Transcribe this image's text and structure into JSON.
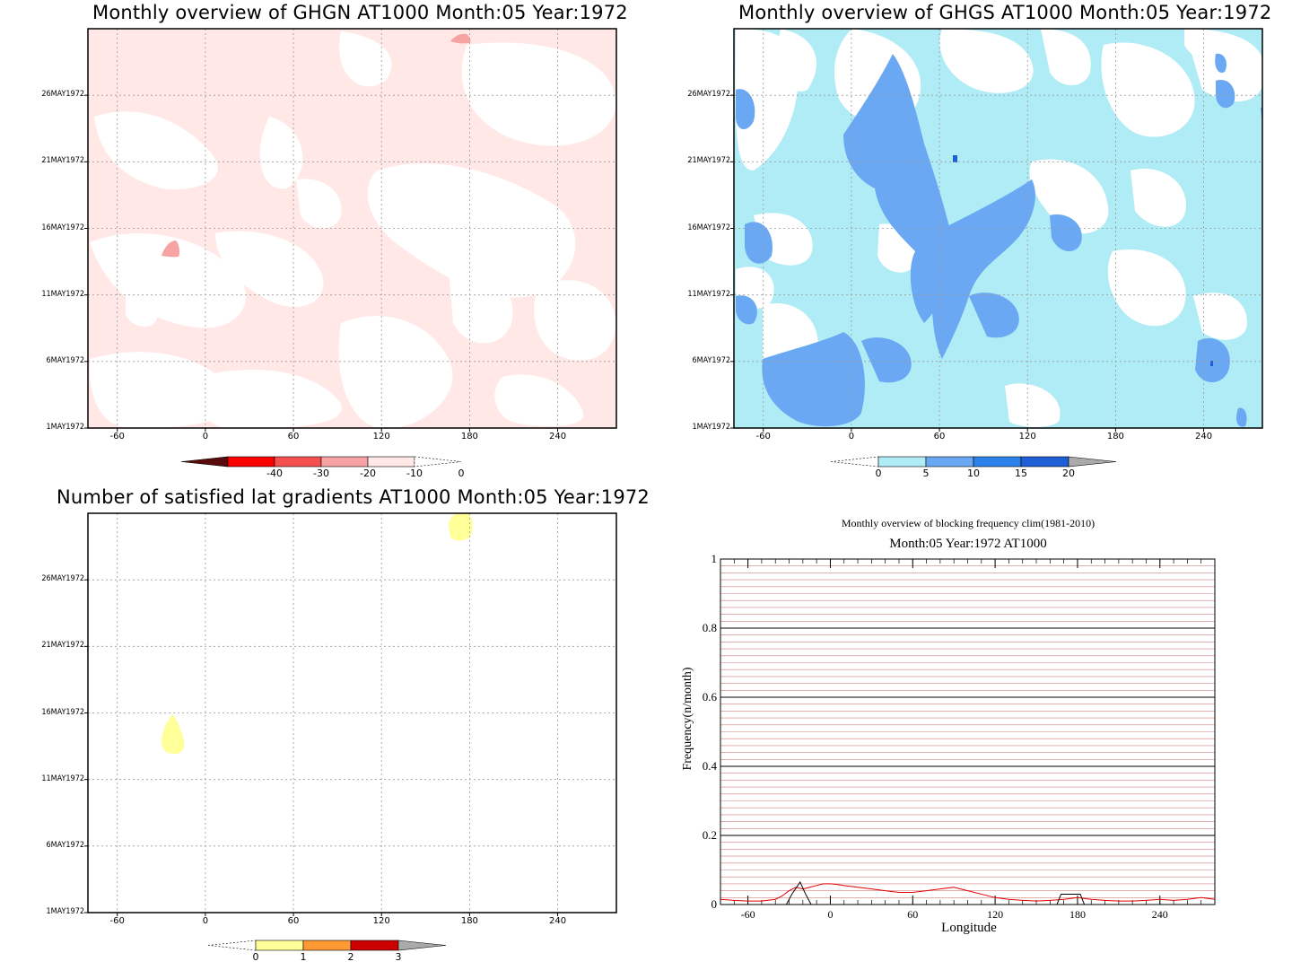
{
  "colors": {
    "ghgn_fill": "#ffe8e6",
    "ghgn_patch": "#f7a3a3",
    "ghgs_light": "#b0ecf6",
    "ghgs_mid": "#6aa8f3",
    "ghgs_dark": "#1e5fd6",
    "lat_yellow": "#ffff99",
    "freq_red": "#e00000",
    "freq_black": "#000000",
    "hgrid_red": "#d08080"
  },
  "chart_data": [
    {
      "id": "ghgn",
      "type": "heatmap",
      "title": "Monthly overview of GHGN AT1000 Month:05 Year:1972",
      "x_ticks": [
        "-60",
        "0",
        "60",
        "120",
        "180",
        "240"
      ],
      "x_tick_values": [
        -60,
        0,
        60,
        120,
        180,
        240
      ],
      "xlim": [
        -80,
        280
      ],
      "y_ticks": [
        "1MAY1972",
        "6MAY1972",
        "11MAY1972",
        "16MAY1972",
        "21MAY1972",
        "26MAY1972"
      ],
      "y_tick_values": [
        1,
        6,
        11,
        16,
        21,
        26
      ],
      "ylim": [
        1,
        31
      ],
      "grid": true,
      "colorbar": {
        "ticks": [
          "-40",
          "-30",
          "-20",
          "-10",
          "0"
        ],
        "colors": [
          "#5a0c0c",
          "#ff0000",
          "#f55050",
          "#f7a3a3",
          "#ffe8e6",
          "#ffffff"
        ],
        "end_open": "right"
      }
    },
    {
      "id": "ghgs",
      "type": "heatmap",
      "title": "Monthly overview of GHGS AT1000 Month:05 Year:1972",
      "x_ticks": [
        "-60",
        "0",
        "60",
        "120",
        "180",
        "240"
      ],
      "x_tick_values": [
        -60,
        0,
        60,
        120,
        180,
        240
      ],
      "xlim": [
        -80,
        280
      ],
      "y_ticks": [
        "1MAY1972",
        "6MAY1972",
        "11MAY1972",
        "16MAY1972",
        "21MAY1972",
        "26MAY1972"
      ],
      "y_tick_values": [
        1,
        6,
        11,
        16,
        21,
        26
      ],
      "ylim": [
        1,
        31
      ],
      "grid": true,
      "colorbar": {
        "ticks": [
          "0",
          "5",
          "10",
          "15",
          "20"
        ],
        "colors": [
          "#ffffff",
          "#b0ecf6",
          "#6aa8f3",
          "#2a82ea",
          "#1e5fd6",
          "#aaaaaa"
        ],
        "end_open": "left"
      }
    },
    {
      "id": "lat",
      "type": "heatmap",
      "title": "Number of satisfied lat gradients AT1000 Month:05 Year:1972",
      "x_ticks": [
        "-60",
        "0",
        "60",
        "120",
        "180",
        "240"
      ],
      "x_tick_values": [
        -60,
        0,
        60,
        120,
        180,
        240
      ],
      "xlim": [
        -80,
        280
      ],
      "y_ticks": [
        "1MAY1972",
        "6MAY1972",
        "11MAY1972",
        "16MAY1972",
        "21MAY1972",
        "26MAY1972"
      ],
      "y_tick_values": [
        1,
        6,
        11,
        16,
        21,
        26
      ],
      "ylim": [
        1,
        31
      ],
      "grid": true,
      "colorbar": {
        "ticks": [
          "0",
          "1",
          "2",
          "3"
        ],
        "colors": [
          "#ffffff",
          "#ffff99",
          "#ff9933",
          "#cc0000",
          "#aaaaaa"
        ],
        "end_open": "left"
      }
    },
    {
      "id": "freq",
      "type": "line",
      "title": "Monthly overview of blocking frequency clim(1981-2010)",
      "subtitle": "Month:05 Year:1972  AT1000",
      "xlabel": "Longitude",
      "ylabel": "Frequency(n/month)",
      "x_ticks": [
        "-60",
        "0",
        "60",
        "120",
        "180",
        "240"
      ],
      "x_tick_values": [
        -60,
        0,
        60,
        120,
        180,
        240
      ],
      "y_ticks": [
        "0",
        "0.2",
        "0.4",
        "0.6",
        "0.8",
        "1"
      ],
      "y_tick_values": [
        0,
        0.2,
        0.4,
        0.6,
        0.8,
        1
      ],
      "xlim": [
        -80,
        280
      ],
      "ylim": [
        0,
        1
      ],
      "series": [
        {
          "color": "#e00000",
          "x": [
            -80,
            -70,
            -60,
            -50,
            -40,
            -35,
            -30,
            -25,
            -20,
            -15,
            -10,
            -5,
            0,
            5,
            10,
            20,
            30,
            40,
            50,
            60,
            70,
            80,
            90,
            100,
            110,
            120,
            130,
            140,
            150,
            160,
            170,
            180,
            190,
            200,
            210,
            220,
            230,
            240,
            250,
            260,
            270,
            280
          ],
          "y": [
            0.015,
            0.012,
            0.01,
            0.01,
            0.015,
            0.025,
            0.04,
            0.05,
            0.045,
            0.05,
            0.055,
            0.06,
            0.06,
            0.058,
            0.055,
            0.05,
            0.045,
            0.04,
            0.035,
            0.035,
            0.04,
            0.045,
            0.05,
            0.04,
            0.03,
            0.02,
            0.015,
            0.012,
            0.01,
            0.012,
            0.015,
            0.02,
            0.015,
            0.012,
            0.01,
            0.01,
            0.012,
            0.015,
            0.012,
            0.015,
            0.02,
            0.015
          ]
        },
        {
          "color": "#000000",
          "x": [
            -80,
            -32,
            -28,
            -22,
            -18,
            -14,
            -10,
            165,
            168,
            172,
            178,
            182,
            185,
            280
          ],
          "y": [
            0,
            0,
            0.03,
            0.065,
            0.03,
            0,
            0,
            0,
            0.03,
            0.03,
            0.03,
            0.03,
            0,
            0
          ]
        }
      ],
      "grid": true
    }
  ]
}
